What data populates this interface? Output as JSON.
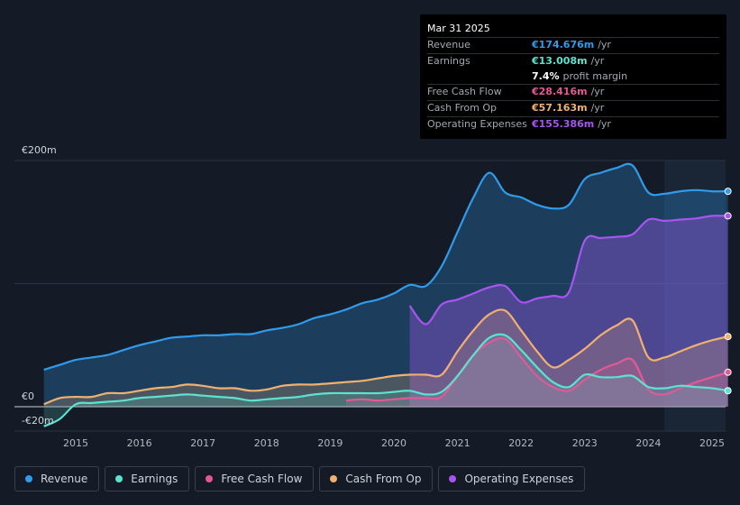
{
  "tooltip": {
    "date": "Mar 31 2025",
    "rows": [
      {
        "label": "Revenue",
        "value": "€174.676m",
        "unit": "/yr",
        "color": "#2f9bea"
      },
      {
        "label": "Earnings",
        "value": "€13.008m",
        "unit": "/yr",
        "color": "#5ee2d0"
      },
      {
        "label": "",
        "value": "7.4%",
        "unit": "profit margin",
        "color": "#ffffff"
      },
      {
        "label": "Free Cash Flow",
        "value": "€28.416m",
        "unit": "/yr",
        "color": "#e05a95"
      },
      {
        "label": "Cash From Op",
        "value": "€57.163m",
        "unit": "/yr",
        "color": "#f0b070"
      },
      {
        "label": "Operating Expenses",
        "value": "€155.386m",
        "unit": "/yr",
        "color": "#a855f0"
      }
    ]
  },
  "legend": [
    {
      "label": "Revenue",
      "color": "#2f9bea"
    },
    {
      "label": "Earnings",
      "color": "#5ee2d0"
    },
    {
      "label": "Free Cash Flow",
      "color": "#e05a95"
    },
    {
      "label": "Cash From Op",
      "color": "#f0b070"
    },
    {
      "label": "Operating Expenses",
      "color": "#a855f0"
    }
  ],
  "chart_data": {
    "type": "area",
    "title": "",
    "xlabel": "",
    "ylabel": "",
    "x_ticks": [
      "2015",
      "2016",
      "2017",
      "2018",
      "2019",
      "2020",
      "2021",
      "2022",
      "2023",
      "2024",
      "2025"
    ],
    "y_ticks": [
      "€200m",
      "€0",
      "-€20m"
    ],
    "ylim": [
      -20,
      200
    ],
    "xlim": [
      2014.5,
      2025.25
    ],
    "grid": true,
    "highlight_region": [
      2024.25,
      2025.25
    ],
    "series": [
      {
        "name": "Revenue",
        "color": "#2f9bea",
        "x": [
          2014.5,
          2014.75,
          2015.0,
          2015.25,
          2015.5,
          2015.75,
          2016.0,
          2016.25,
          2016.5,
          2016.75,
          2017.0,
          2017.25,
          2017.5,
          2017.75,
          2018.0,
          2018.25,
          2018.5,
          2018.75,
          2019.0,
          2019.25,
          2019.5,
          2019.75,
          2020.0,
          2020.25,
          2020.5,
          2020.75,
          2021.0,
          2021.25,
          2021.5,
          2021.75,
          2022.0,
          2022.25,
          2022.5,
          2022.75,
          2023.0,
          2023.25,
          2023.5,
          2023.75,
          2024.0,
          2024.25,
          2024.5,
          2024.75,
          2025.0,
          2025.25
        ],
        "values": [
          30,
          34,
          38,
          40,
          42,
          46,
          50,
          53,
          56,
          57,
          58,
          58,
          59,
          59,
          62,
          64,
          67,
          72,
          75,
          79,
          84,
          87,
          92,
          99,
          98,
          114,
          142,
          170,
          190,
          174,
          170,
          164,
          161,
          164,
          185,
          190,
          194,
          196,
          174,
          173,
          175,
          176,
          175,
          175
        ]
      },
      {
        "name": "Earnings",
        "color": "#5ee2d0",
        "x": [
          2014.5,
          2014.75,
          2015.0,
          2015.25,
          2015.5,
          2015.75,
          2016.0,
          2016.25,
          2016.5,
          2016.75,
          2017.0,
          2017.25,
          2017.5,
          2017.75,
          2018.0,
          2018.25,
          2018.5,
          2018.75,
          2019.0,
          2019.25,
          2019.5,
          2019.75,
          2020.0,
          2020.25,
          2020.5,
          2020.75,
          2021.0,
          2021.25,
          2021.5,
          2021.75,
          2022.0,
          2022.25,
          2022.5,
          2022.75,
          2023.0,
          2023.25,
          2023.5,
          2023.75,
          2024.0,
          2024.25,
          2024.5,
          2024.75,
          2025.0,
          2025.25
        ],
        "values": [
          -16,
          -10,
          2,
          3,
          4,
          5,
          7,
          8,
          9,
          10,
          9,
          8,
          7,
          5,
          6,
          7,
          8,
          10,
          11,
          11,
          11,
          11,
          12,
          13,
          10,
          12,
          25,
          42,
          56,
          58,
          46,
          32,
          20,
          16,
          26,
          24,
          24,
          25,
          16,
          15,
          17,
          16,
          15,
          13
        ]
      },
      {
        "name": "Free Cash Flow",
        "color": "#e05a95",
        "x": [
          2019.25,
          2019.5,
          2019.75,
          2020.0,
          2020.25,
          2020.5,
          2020.75,
          2021.0,
          2021.25,
          2021.5,
          2021.75,
          2022.0,
          2022.25,
          2022.5,
          2022.75,
          2023.0,
          2023.25,
          2023.5,
          2023.75,
          2024.0,
          2024.25,
          2024.5,
          2024.75,
          2025.0,
          2025.25
        ],
        "values": [
          5,
          6,
          5,
          6,
          7,
          7,
          8,
          25,
          42,
          52,
          55,
          40,
          25,
          16,
          13,
          22,
          30,
          35,
          38,
          14,
          10,
          15,
          20,
          24,
          28
        ]
      },
      {
        "name": "Cash From Op",
        "color": "#f0b070",
        "x": [
          2014.5,
          2014.75,
          2015.0,
          2015.25,
          2015.5,
          2015.75,
          2016.0,
          2016.25,
          2016.5,
          2016.75,
          2017.0,
          2017.25,
          2017.5,
          2017.75,
          2018.0,
          2018.25,
          2018.5,
          2018.75,
          2019.0,
          2019.25,
          2019.5,
          2019.75,
          2020.0,
          2020.25,
          2020.5,
          2020.75,
          2021.0,
          2021.25,
          2021.5,
          2021.75,
          2022.0,
          2022.25,
          2022.5,
          2022.75,
          2023.0,
          2023.25,
          2023.5,
          2023.75,
          2024.0,
          2024.25,
          2024.5,
          2024.75,
          2025.0,
          2025.25
        ],
        "values": [
          2,
          7,
          8,
          8,
          11,
          11,
          13,
          15,
          16,
          18,
          17,
          15,
          15,
          13,
          14,
          17,
          18,
          18,
          19,
          20,
          21,
          23,
          25,
          26,
          26,
          26,
          45,
          62,
          75,
          78,
          62,
          45,
          32,
          38,
          47,
          58,
          66,
          70,
          40,
          40,
          45,
          50,
          54,
          57
        ]
      },
      {
        "name": "Operating Expenses",
        "color": "#a855f0",
        "x": [
          2020.25,
          2020.5,
          2020.75,
          2021.0,
          2021.25,
          2021.5,
          2021.75,
          2022.0,
          2022.25,
          2022.5,
          2022.75,
          2023.0,
          2023.25,
          2023.5,
          2023.75,
          2024.0,
          2024.25,
          2024.5,
          2024.75,
          2025.0,
          2025.25
        ],
        "values": [
          82,
          67,
          83,
          87,
          92,
          97,
          98,
          85,
          88,
          90,
          93,
          135,
          137,
          138,
          140,
          152,
          151,
          152,
          153,
          155,
          155
        ]
      }
    ]
  }
}
